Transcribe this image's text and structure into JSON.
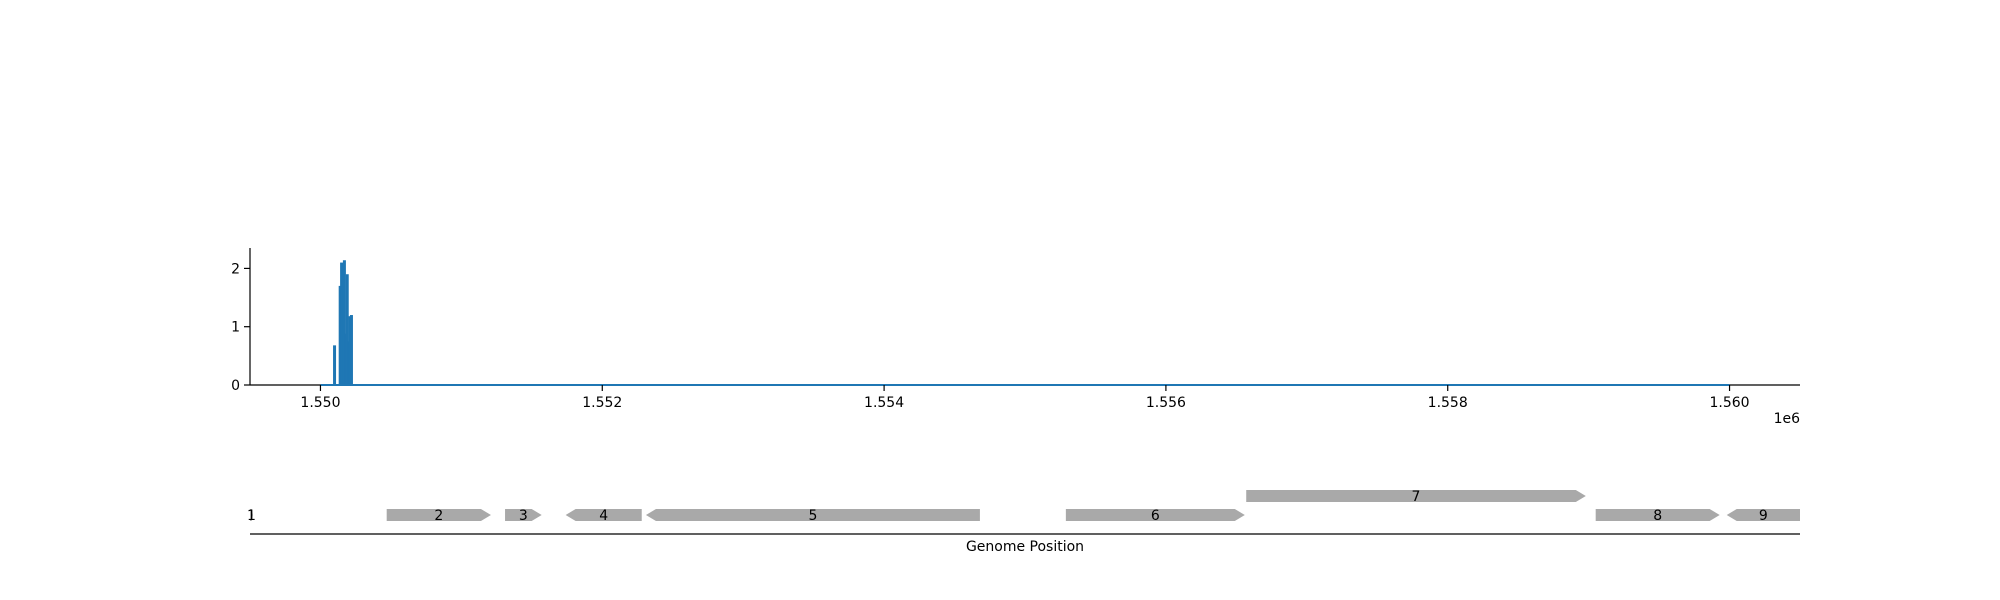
{
  "chart_data": [
    {
      "type": "bar",
      "title": "",
      "xlabel": "",
      "ylabel": "",
      "xlim": [
        1549500,
        1560500
      ],
      "ylim": [
        0,
        2.35
      ],
      "x_ticks": [
        1550000,
        1552000,
        1554000,
        1556000,
        1558000,
        1560000
      ],
      "x_tick_labels": [
        "1.550",
        "1.552",
        "1.554",
        "1.556",
        "1.558",
        "1.560"
      ],
      "x_offset_label": "1e6",
      "y_ticks": [
        0,
        1,
        2
      ],
      "y_tick_labels": [
        "0",
        "1",
        "2"
      ],
      "grid": false,
      "color": "#1f77b4",
      "series": [
        {
          "x": [
            1550100,
            1550140,
            1550150,
            1550160,
            1550170,
            1550180,
            1550190,
            1550200,
            1550210,
            1550220
          ],
          "values": [
            0.68,
            1.7,
            2.1,
            1.8,
            2.14,
            0.88,
            1.9,
            0.75,
            1.18,
            1.2
          ]
        }
      ],
      "baseline": {
        "x_range": [
          1550000,
          1560000
        ],
        "value": 0
      }
    },
    {
      "type": "gene-track",
      "xlabel": "Genome Position",
      "xlim": [
        1549500,
        1560500
      ],
      "color": "#a9a9a9",
      "genes": [
        {
          "label": "1",
          "start": 1549450,
          "end": 1549520,
          "strand": "+",
          "row": 0
        },
        {
          "label": "2",
          "start": 1550470,
          "end": 1551210,
          "strand": "+",
          "row": 0
        },
        {
          "label": "3",
          "start": 1551310,
          "end": 1551570,
          "strand": "+",
          "row": 0
        },
        {
          "label": "4",
          "start": 1551740,
          "end": 1552280,
          "strand": "-",
          "row": 0
        },
        {
          "label": "5",
          "start": 1552310,
          "end": 1554680,
          "strand": "-",
          "row": 0
        },
        {
          "label": "6",
          "start": 1555290,
          "end": 1556560,
          "strand": "+",
          "row": 0
        },
        {
          "label": "7",
          "start": 1556570,
          "end": 1558980,
          "strand": "+",
          "row": 1
        },
        {
          "label": "8",
          "start": 1559050,
          "end": 1559930,
          "strand": "+",
          "row": 0
        },
        {
          "label": "9",
          "start": 1559980,
          "end": 1560500,
          "strand": "-",
          "row": 0
        }
      ]
    }
  ]
}
